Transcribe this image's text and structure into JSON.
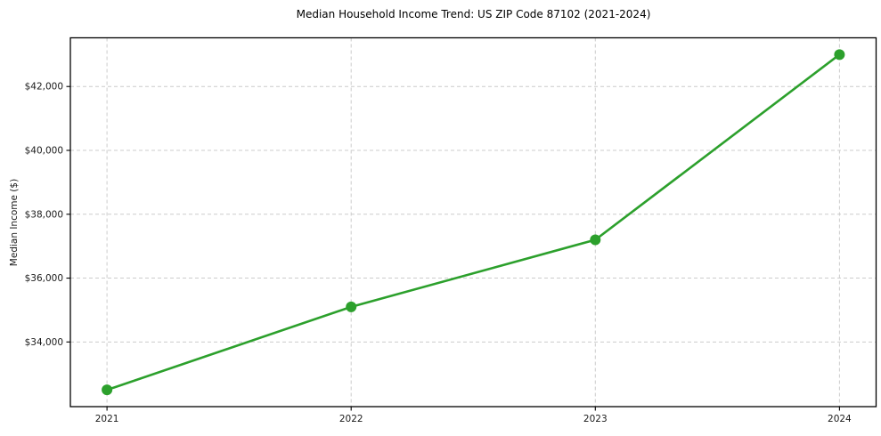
{
  "chart_data": {
    "type": "line",
    "title": "Median Household Income Trend: US ZIP Code 87102 (2021-2024)",
    "xlabel": "",
    "ylabel": "Median Income ($)",
    "x": [
      2021,
      2022,
      2023,
      2024
    ],
    "xtick_labels": [
      "2021",
      "2022",
      "2023",
      "2024"
    ],
    "series": [
      {
        "name": "Median Household Income",
        "values": [
          32500,
          35100,
          37200,
          43000
        ]
      }
    ],
    "yticks": [
      34000,
      36000,
      38000,
      40000,
      42000
    ],
    "ytick_labels": [
      "$34,000",
      "$36,000",
      "$38,000",
      "$40,000",
      "$42,000"
    ],
    "xlim": [
      2020.85,
      2024.15
    ],
    "ylim": [
      31975,
      43525
    ],
    "grid": true,
    "grid_style": "dashed",
    "legend": "none",
    "line_color": "#2ca02c",
    "marker_color": "#2ca02c",
    "grid_color": "#cccccc",
    "axis_color": "#000000",
    "text_color": "#1a1a1a"
  }
}
